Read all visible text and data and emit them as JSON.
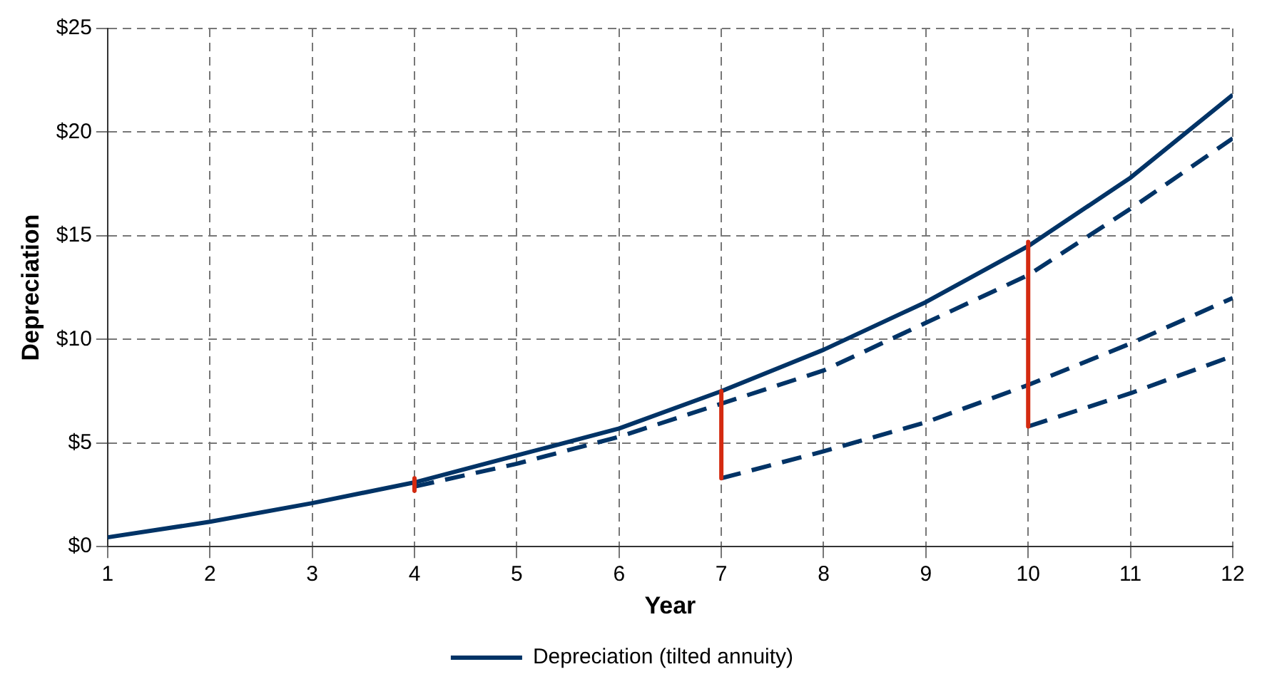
{
  "chart_data": {
    "type": "line",
    "xlabel": "Year",
    "ylabel": "Depreciation",
    "xlim": [
      1,
      12
    ],
    "xticks": [
      1,
      2,
      3,
      4,
      5,
      6,
      7,
      8,
      9,
      10,
      11,
      12
    ],
    "ylim": [
      0,
      25
    ],
    "yticks": [
      {
        "value": 0,
        "label": "$0"
      },
      {
        "value": 5,
        "label": "$5"
      },
      {
        "value": 10,
        "label": "$10"
      },
      {
        "value": 15,
        "label": "$15"
      },
      {
        "value": 20,
        "label": "$20"
      },
      {
        "value": 25,
        "label": "$25"
      }
    ],
    "grid": true,
    "legend": "bottom",
    "marker": "none",
    "series": [
      {
        "name": "Depreciation (tilted annuity)",
        "color": "#003366",
        "line_style": "solid",
        "x": [
          1,
          2,
          3,
          4,
          5,
          6,
          7,
          8,
          9,
          10,
          11,
          12
        ],
        "values": [
          0.45,
          1.2,
          2.1,
          3.1,
          4.4,
          5.7,
          7.5,
          9.5,
          11.8,
          14.5,
          17.8,
          21.8
        ]
      },
      {
        "color": "#003366",
        "line_style": "dashed",
        "x": [
          4,
          5,
          6,
          7,
          8,
          9,
          10,
          11,
          12
        ],
        "values": [
          2.9,
          4.0,
          5.3,
          6.9,
          8.5,
          10.8,
          13.1,
          16.3,
          19.7
        ]
      },
      {
        "color": "#003366",
        "line_style": "dashed",
        "x": [
          7,
          8,
          9,
          10,
          11,
          12
        ],
        "values": [
          3.3,
          4.6,
          6.0,
          7.8,
          9.8,
          12.0
        ]
      },
      {
        "color": "#003366",
        "line_style": "dashed",
        "x": [
          10,
          11,
          12
        ],
        "values": [
          5.8,
          7.4,
          9.2
        ]
      },
      {
        "color": "#d42a10",
        "line_style": "solid",
        "x": [
          4,
          4
        ],
        "values": [
          3.3,
          2.7
        ]
      },
      {
        "color": "#d42a10",
        "line_style": "solid",
        "x": [
          7,
          7
        ],
        "values": [
          7.5,
          3.3
        ]
      },
      {
        "color": "#d42a10",
        "line_style": "solid",
        "x": [
          10,
          10
        ],
        "values": [
          14.7,
          5.8
        ]
      }
    ]
  }
}
